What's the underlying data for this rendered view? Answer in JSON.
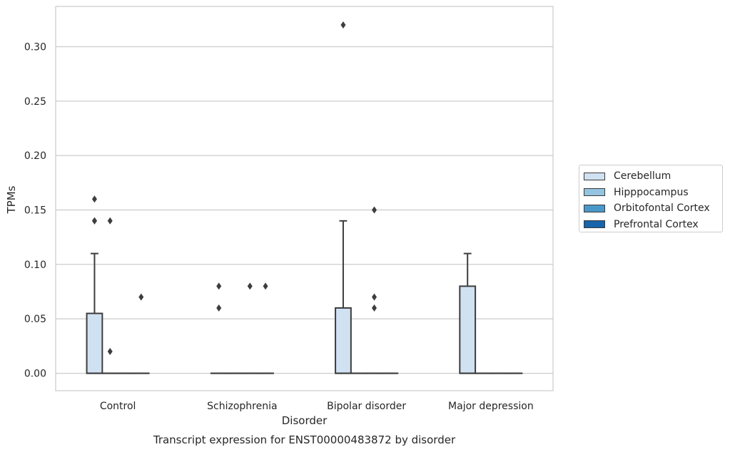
{
  "chart_data": {
    "type": "box",
    "caption": "Transcript expression for ENST00000483872 by disorder",
    "xlabel": "Disorder",
    "ylabel": "TPMs",
    "ylim": [
      -0.016,
      0.337
    ],
    "yticks": [
      "0.00",
      "0.05",
      "0.10",
      "0.15",
      "0.20",
      "0.25",
      "0.30"
    ],
    "ytick_values": [
      0,
      0.05,
      0.1,
      0.15,
      0.2,
      0.25,
      0.3
    ],
    "categories": [
      "Control",
      "Schizophrenia",
      "Bipolar disorder",
      "Major depression"
    ],
    "grid": "horizontal",
    "legend_position": "right",
    "series": [
      {
        "name": "Cerebellum",
        "color": "#d0e1f2",
        "boxes": [
          {
            "q1": 0,
            "median": 0,
            "q3": 0.055,
            "whisker_low": 0,
            "whisker_high": 0.11,
            "outliers": [
              0.14,
              0.14,
              0.16
            ]
          },
          {
            "q1": 0,
            "median": 0,
            "q3": 0,
            "whisker_low": 0,
            "whisker_high": 0,
            "outliers": [
              0.06,
              0.08
            ]
          },
          {
            "q1": 0,
            "median": 0,
            "q3": 0.06,
            "whisker_low": 0,
            "whisker_high": 0.14,
            "outliers": [
              0.32
            ]
          },
          {
            "q1": 0,
            "median": 0,
            "q3": 0.08,
            "whisker_low": 0,
            "whisker_high": 0.11,
            "outliers": []
          }
        ]
      },
      {
        "name": "Hipppocampus",
        "color": "#94c4df",
        "boxes": [
          {
            "q1": 0,
            "median": 0,
            "q3": 0,
            "whisker_low": 0,
            "whisker_high": 0,
            "outliers": [
              0.02,
              0.14
            ]
          },
          {
            "q1": 0,
            "median": 0,
            "q3": 0,
            "whisker_low": 0,
            "whisker_high": 0,
            "outliers": []
          },
          {
            "q1": 0,
            "median": 0,
            "q3": 0,
            "whisker_low": 0,
            "whisker_high": 0,
            "outliers": []
          },
          {
            "q1": 0,
            "median": 0,
            "q3": 0,
            "whisker_low": 0,
            "whisker_high": 0,
            "outliers": []
          }
        ]
      },
      {
        "name": "Orbitofontal Cortex",
        "color": "#4a98c9",
        "boxes": [
          {
            "q1": 0,
            "median": 0,
            "q3": 0,
            "whisker_low": 0,
            "whisker_high": 0,
            "outliers": []
          },
          {
            "q1": 0,
            "median": 0,
            "q3": 0,
            "whisker_low": 0,
            "whisker_high": 0,
            "outliers": [
              0.08
            ]
          },
          {
            "q1": 0,
            "median": 0,
            "q3": 0,
            "whisker_low": 0,
            "whisker_high": 0,
            "outliers": [
              0.06,
              0.07,
              0.15
            ]
          },
          {
            "q1": 0,
            "median": 0,
            "q3": 0,
            "whisker_low": 0,
            "whisker_high": 0,
            "outliers": []
          }
        ]
      },
      {
        "name": "Prefrontal Cortex",
        "color": "#1764ab",
        "boxes": [
          {
            "q1": 0,
            "median": 0,
            "q3": 0,
            "whisker_low": 0,
            "whisker_high": 0,
            "outliers": [
              0.07
            ]
          },
          {
            "q1": 0,
            "median": 0,
            "q3": 0,
            "whisker_low": 0,
            "whisker_high": 0,
            "outliers": [
              0.08
            ]
          },
          {
            "q1": 0,
            "median": 0,
            "q3": 0,
            "whisker_low": 0,
            "whisker_high": 0,
            "outliers": []
          },
          {
            "q1": 0,
            "median": 0,
            "q3": 0,
            "whisker_low": 0,
            "whisker_high": 0,
            "outliers": []
          }
        ]
      }
    ]
  }
}
